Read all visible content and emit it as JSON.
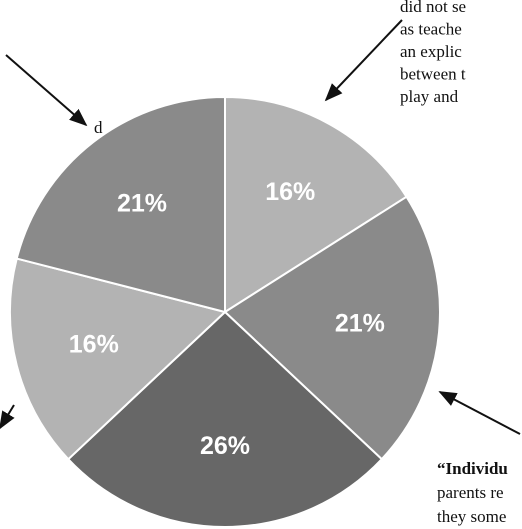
{
  "chart_data": {
    "type": "pie",
    "categories": [
      null,
      null,
      null,
      null,
      null
    ],
    "values": [
      16,
      21,
      26,
      16,
      21
    ],
    "value_labels": [
      "16%",
      "21%",
      "26%",
      "16%",
      "21%"
    ],
    "colors": [
      "#b3b3b3",
      "#8a8a8a",
      "#676767",
      "#b3b3b3",
      "#8a8a8a"
    ],
    "annotations": {
      "top_right": [
        "did not se",
        "as teache",
        "an explic",
        "between t",
        "play and"
      ],
      "left": [
        "d"
      ],
      "bottom_right": [
        "“Individu",
        "parents re",
        "they some"
      ]
    }
  }
}
